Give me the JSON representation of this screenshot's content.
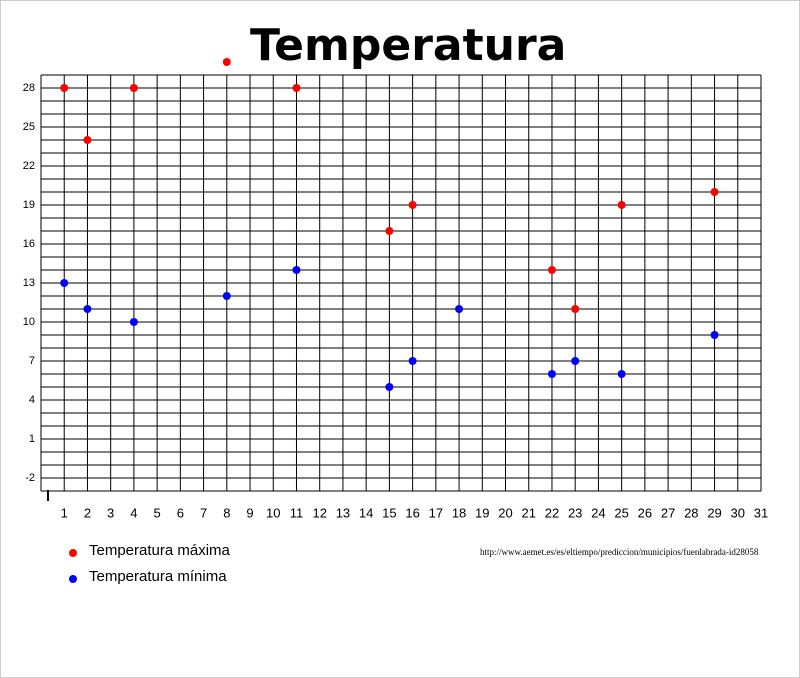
{
  "chart_data": {
    "type": "scatter",
    "title": "Temperatura",
    "xlim": [
      0,
      31
    ],
    "xticks": [
      1,
      2,
      3,
      4,
      5,
      6,
      7,
      8,
      9,
      10,
      11,
      12,
      13,
      14,
      15,
      16,
      17,
      18,
      19,
      20,
      21,
      22,
      23,
      24,
      25,
      26,
      27,
      28,
      29,
      30,
      31
    ],
    "ylim": [
      -3,
      29
    ],
    "yticks": [
      -2,
      1,
      4,
      7,
      10,
      13,
      16,
      19,
      22,
      25,
      28
    ],
    "grid": true,
    "series": [
      {
        "name": "Temperatura máxima",
        "color": "#ff0000",
        "x": [
          1,
          2,
          4,
          8,
          11,
          15,
          16,
          22,
          23,
          25,
          29
        ],
        "values": [
          28,
          24,
          28,
          30,
          28,
          17,
          19,
          14,
          11,
          19,
          20
        ]
      },
      {
        "name": "Temperatura mínima",
        "color": "#0000ff",
        "x": [
          1,
          2,
          4,
          8,
          11,
          15,
          16,
          18,
          22,
          23,
          25,
          29
        ],
        "values": [
          13,
          11,
          10,
          12,
          14,
          5,
          7,
          11,
          6,
          7,
          6,
          9
        ]
      }
    ],
    "source": "http://www.aemet.es/es/eltiempo/prediccion/municipios/fuenlabrada-id28058"
  }
}
